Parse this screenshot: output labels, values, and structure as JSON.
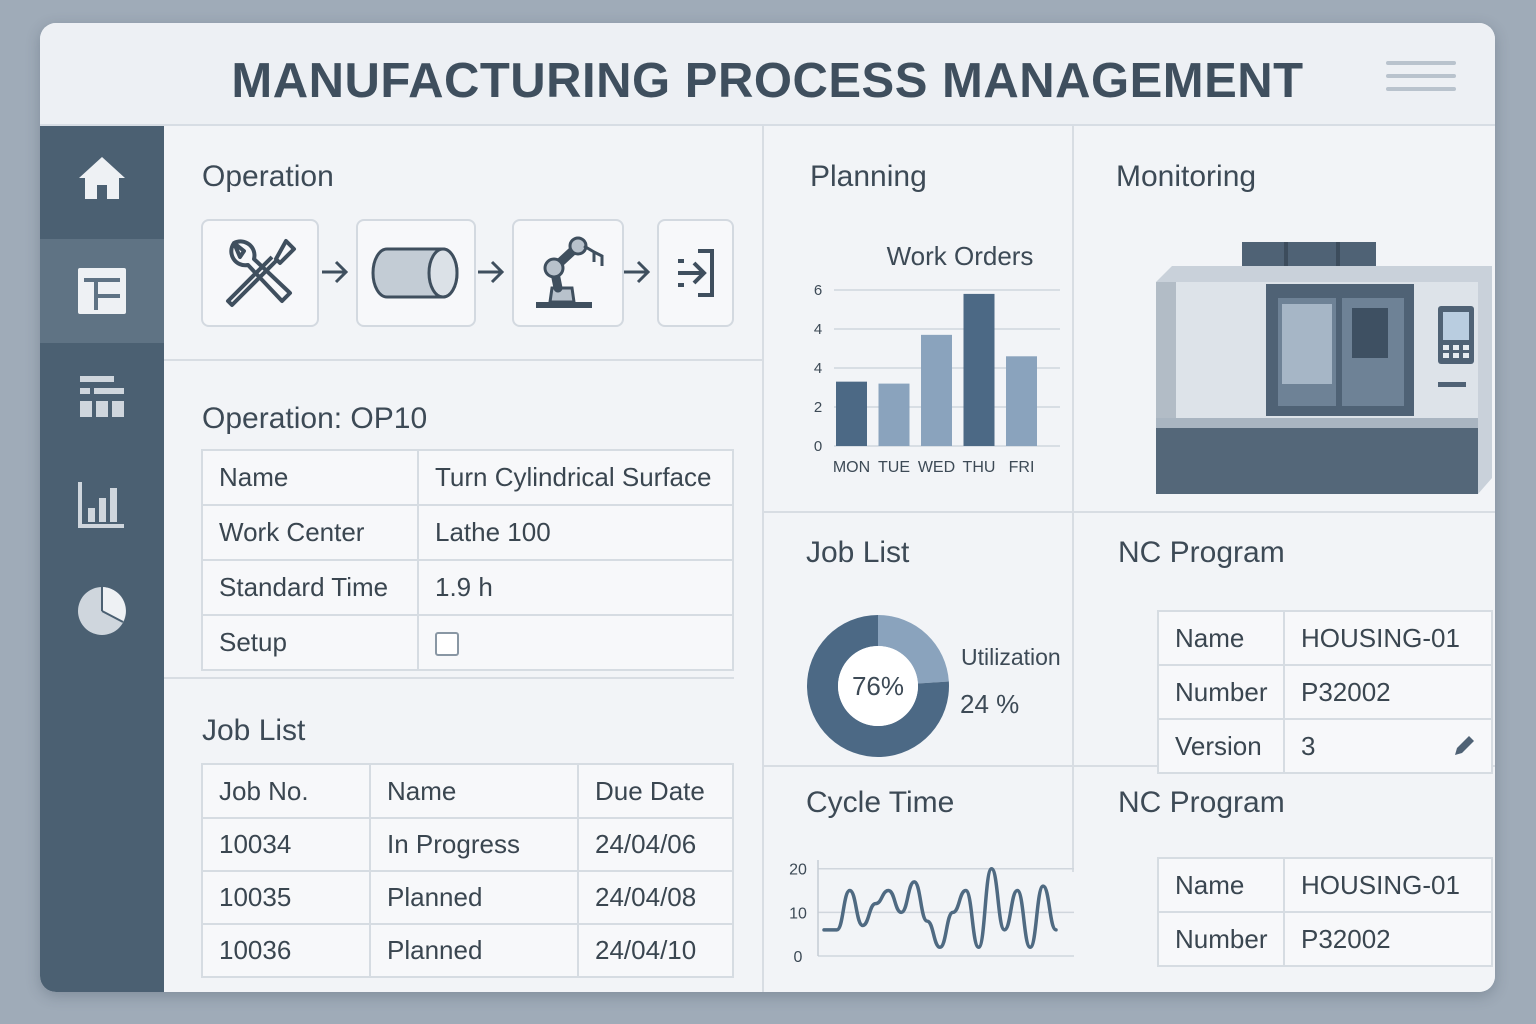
{
  "app": {
    "title": "MANUFACTURING PROCESS MANAGEMENT"
  },
  "sidebar": {
    "items": [
      {
        "icon": "home-icon",
        "active": false
      },
      {
        "icon": "layout-icon",
        "active": true
      },
      {
        "icon": "grid-icon",
        "active": false
      },
      {
        "icon": "bar-chart-icon",
        "active": false
      },
      {
        "icon": "pie-chart-icon",
        "active": false
      }
    ]
  },
  "operation": {
    "title": "Operation",
    "steps": [
      "tools-icon",
      "cylinder-icon",
      "robot-arm-icon",
      "exit-icon"
    ]
  },
  "op_details": {
    "title": "Operation: OP10",
    "rows": [
      {
        "label": "Name",
        "value": "Turn Cylindrical Surface"
      },
      {
        "label": "Work Center",
        "value": "Lathe 100"
      },
      {
        "label": "Standard Time",
        "value": "1.9 h"
      },
      {
        "label": "Setup",
        "value": ""
      }
    ],
    "setup_checked": false
  },
  "job_list": {
    "title": "Job List",
    "headers": [
      "Job No.",
      "Name",
      "Due Date"
    ],
    "rows": [
      [
        "10034",
        "In Progress",
        "24/04/06"
      ],
      [
        "10035",
        "Planned",
        "24/04/08"
      ],
      [
        "10036",
        "Planned",
        "24/04/10"
      ]
    ]
  },
  "planning": {
    "title": "Planning"
  },
  "monitoring": {
    "title": "Monitoring"
  },
  "job_list_util": {
    "title": "Job List",
    "label": "Utilization",
    "center": "76%",
    "remainder": "24 %"
  },
  "nc_program_1": {
    "title": "NC Program",
    "rows": [
      {
        "label": "Name",
        "value": "HOUSING-01"
      },
      {
        "label": "Number",
        "value": "P32002"
      },
      {
        "label": "Version",
        "value": "3"
      }
    ]
  },
  "cycle_time": {
    "title": "Cycle Time"
  },
  "nc_program_2": {
    "title": "NC Program",
    "rows": [
      {
        "label": "Name",
        "value": "HOUSING-01"
      },
      {
        "label": "Number",
        "value": "P32002"
      }
    ]
  },
  "colors": {
    "sidebar": "#4b6072",
    "bar_light": "#8aa3bd",
    "bar_dark": "#4c6985",
    "line": "#4f6a82"
  },
  "chart_data": [
    {
      "type": "bar",
      "title": "Work Orders",
      "categories": [
        "MON",
        "TUE",
        "WED",
        "THU",
        "FRI"
      ],
      "values": [
        3.3,
        3.2,
        5.7,
        7.8,
        4.6
      ],
      "yticks": [
        "0",
        "2",
        "4",
        "4",
        "6"
      ],
      "ylim": [
        0,
        8
      ],
      "grid": true
    },
    {
      "type": "pie",
      "title": "Job List",
      "labels": [
        "76%",
        "24 %"
      ],
      "values": [
        76,
        24
      ]
    },
    {
      "type": "line",
      "title": "Cycle Time",
      "yticks": [
        "0",
        "10",
        "20"
      ],
      "ylim": [
        0,
        22
      ],
      "values": [
        6,
        6,
        15,
        7,
        12,
        15,
        10,
        17,
        8,
        2,
        10,
        15,
        2,
        20,
        6,
        15,
        2,
        16,
        6
      ],
      "grid": true
    }
  ]
}
